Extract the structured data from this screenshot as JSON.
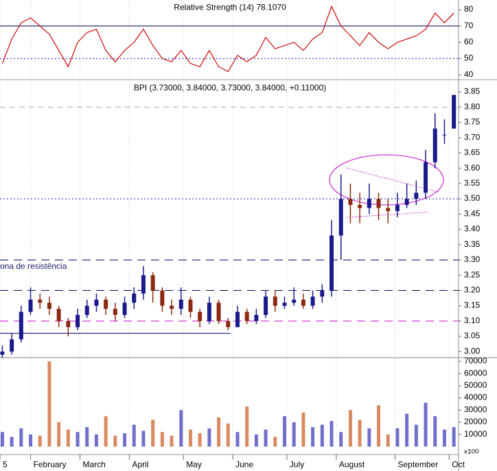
{
  "chart_data": [
    {
      "type": "line",
      "title": "Relative Strength (14) 78.1070",
      "color": "#cc0000",
      "values": [
        47,
        62,
        72,
        75,
        70,
        65,
        55,
        45,
        60,
        66,
        68,
        55,
        48,
        55,
        60,
        68,
        58,
        50,
        48,
        55,
        47,
        45,
        55,
        45,
        42,
        52,
        48,
        52,
        63,
        56,
        58,
        60,
        55,
        62,
        66,
        82,
        70,
        64,
        58,
        66,
        60,
        56,
        60,
        62,
        64,
        68,
        78,
        72,
        78
      ],
      "ylim": [
        37,
        86
      ],
      "yticks": [
        40,
        50,
        60,
        70,
        80
      ],
      "hlines": [
        {
          "value": 70,
          "color": "#1a1a6e",
          "style": "solid"
        },
        {
          "value": 50,
          "color": "#2a2ad0",
          "style": "dotted"
        }
      ]
    },
    {
      "type": "candlestick",
      "title": "BPI (3.73000, 3.84000, 3.73000, 3.84000, +0.11000)",
      "up_color": "#1a1a8c",
      "down_color": "#8b2a10",
      "x": [
        1,
        5,
        9,
        13,
        17,
        21,
        25,
        29,
        33,
        37,
        41,
        45,
        49,
        53,
        57,
        61,
        65,
        69,
        73,
        77,
        81,
        85,
        89,
        93,
        97,
        101,
        105,
        109,
        113,
        117,
        121,
        125,
        129,
        133,
        137,
        141,
        145,
        149,
        153,
        157,
        161,
        165,
        169,
        173,
        177,
        181,
        185,
        189,
        193
      ],
      "open": [
        2.99,
        3.0,
        3.04,
        3.13,
        3.17,
        3.16,
        3.14,
        3.1,
        3.08,
        3.12,
        3.15,
        3.17,
        3.14,
        3.12,
        3.16,
        3.19,
        3.25,
        3.2,
        3.15,
        3.14,
        3.17,
        3.13,
        3.1,
        3.16,
        3.1,
        3.08,
        3.13,
        3.1,
        3.12,
        3.18,
        3.15,
        3.16,
        3.17,
        3.15,
        3.18,
        3.2,
        3.38,
        3.5,
        3.48,
        3.47,
        3.5,
        3.47,
        3.46,
        3.48,
        3.5,
        3.52,
        3.62,
        3.71,
        3.73
      ],
      "high": [
        3.02,
        3.06,
        3.15,
        3.21,
        3.19,
        3.18,
        3.15,
        3.11,
        3.14,
        3.17,
        3.19,
        3.18,
        3.16,
        3.18,
        3.21,
        3.28,
        3.26,
        3.21,
        3.17,
        3.21,
        3.18,
        3.14,
        3.18,
        3.17,
        3.11,
        3.15,
        3.14,
        3.14,
        3.2,
        3.2,
        3.18,
        3.21,
        3.19,
        3.2,
        3.22,
        3.43,
        3.58,
        3.55,
        3.52,
        3.55,
        3.52,
        3.5,
        3.52,
        3.55,
        3.56,
        3.66,
        3.78,
        3.76,
        3.84
      ],
      "low": [
        2.98,
        2.99,
        3.03,
        3.12,
        3.14,
        3.12,
        3.08,
        3.05,
        3.07,
        3.11,
        3.13,
        3.12,
        3.1,
        3.11,
        3.14,
        3.17,
        3.16,
        3.13,
        3.12,
        3.12,
        3.11,
        3.08,
        3.09,
        3.09,
        3.07,
        3.08,
        3.09,
        3.09,
        3.11,
        3.13,
        3.14,
        3.15,
        3.14,
        3.14,
        3.16,
        3.18,
        3.3,
        3.42,
        3.42,
        3.45,
        3.43,
        3.42,
        3.44,
        3.47,
        3.48,
        3.5,
        3.6,
        3.68,
        3.73
      ],
      "close": [
        3.0,
        3.04,
        3.13,
        3.17,
        3.16,
        3.14,
        3.1,
        3.08,
        3.12,
        3.15,
        3.17,
        3.14,
        3.12,
        3.16,
        3.19,
        3.25,
        3.2,
        3.15,
        3.14,
        3.17,
        3.13,
        3.1,
        3.16,
        3.1,
        3.08,
        3.13,
        3.1,
        3.12,
        3.18,
        3.15,
        3.16,
        3.17,
        3.15,
        3.18,
        3.2,
        3.38,
        3.5,
        3.48,
        3.47,
        3.5,
        3.47,
        3.46,
        3.48,
        3.5,
        3.52,
        3.62,
        3.73,
        3.71,
        3.84
      ],
      "xlim": [
        0,
        195
      ],
      "ylim": [
        2.98,
        3.89
      ],
      "yticks": [
        {
          "value": 3.0,
          "label": "3.00"
        },
        {
          "value": 3.05,
          "label": "3.05"
        },
        {
          "value": 3.1,
          "label": "3.10"
        },
        {
          "value": 3.15,
          "label": "3.15"
        },
        {
          "value": 3.2,
          "label": "3.20"
        },
        {
          "value": 3.25,
          "label": "3.25"
        },
        {
          "value": 3.3,
          "label": "3.30"
        },
        {
          "value": 3.35,
          "label": "3.35"
        },
        {
          "value": 3.4,
          "label": "3.40"
        },
        {
          "value": 3.45,
          "label": "3.45"
        },
        {
          "value": 3.5,
          "label": "3.50"
        },
        {
          "value": 3.55,
          "label": "3.55"
        },
        {
          "value": 3.6,
          "label": "3.60"
        },
        {
          "value": 3.65,
          "label": "3.65"
        },
        {
          "value": 3.7,
          "label": "3.70"
        },
        {
          "value": 3.75,
          "label": "3.75"
        },
        {
          "value": 3.8,
          "label": "3.80"
        },
        {
          "value": 3.85,
          "label": "3.85"
        }
      ],
      "hlines": [
        {
          "value": 3.8,
          "color": "#b0b0c8",
          "style": "dashed"
        },
        {
          "value": 3.5,
          "color": "#2a2ad0",
          "style": "dotted"
        },
        {
          "value": 3.3,
          "color": "#1a1a6e",
          "style": "long-dash"
        },
        {
          "value": 3.2,
          "color": "#1a1a6e",
          "style": "long-dash"
        },
        {
          "value": 3.1,
          "color": "#d020d0",
          "style": "long-dash"
        },
        {
          "value": 3.06,
          "color": "#1a1a6e",
          "style": "solid",
          "x": [
            0,
            98
          ]
        }
      ],
      "annotation": "ona de resistência",
      "annotation_value": 3.26
    },
    {
      "type": "bar",
      "axis_note": "x100",
      "up_color": "#7070cc",
      "down_color": "#d98a60",
      "values": [
        12000,
        8000,
        15000,
        10000,
        9000,
        70000,
        20000,
        14000,
        12000,
        16000,
        10000,
        25000,
        9000,
        11000,
        18000,
        13000,
        22000,
        12000,
        9000,
        30000,
        14000,
        11000,
        15000,
        24000,
        19000,
        12000,
        33000,
        10000,
        14000,
        8000,
        25000,
        20000,
        28000,
        16000,
        18000,
        21000,
        12000,
        30000,
        22000,
        15000,
        34000,
        10000,
        15000,
        27000,
        18000,
        36000,
        25000,
        14000,
        16000
      ],
      "ylim": [
        0,
        73000
      ],
      "yticks": [
        10000,
        20000,
        30000,
        40000,
        50000,
        60000,
        70000
      ],
      "xticks": [
        {
          "value": 0,
          "label": "5"
        },
        {
          "value": 13,
          "label": "February"
        },
        {
          "value": 34,
          "label": "March"
        },
        {
          "value": 55,
          "label": "April"
        },
        {
          "value": 78,
          "label": "May"
        },
        {
          "value": 99,
          "label": "June"
        },
        {
          "value": 122,
          "label": "July"
        },
        {
          "value": 143,
          "label": "August"
        },
        {
          "value": 168,
          "label": "September"
        },
        {
          "value": 191,
          "label": "Oct"
        }
      ]
    }
  ]
}
